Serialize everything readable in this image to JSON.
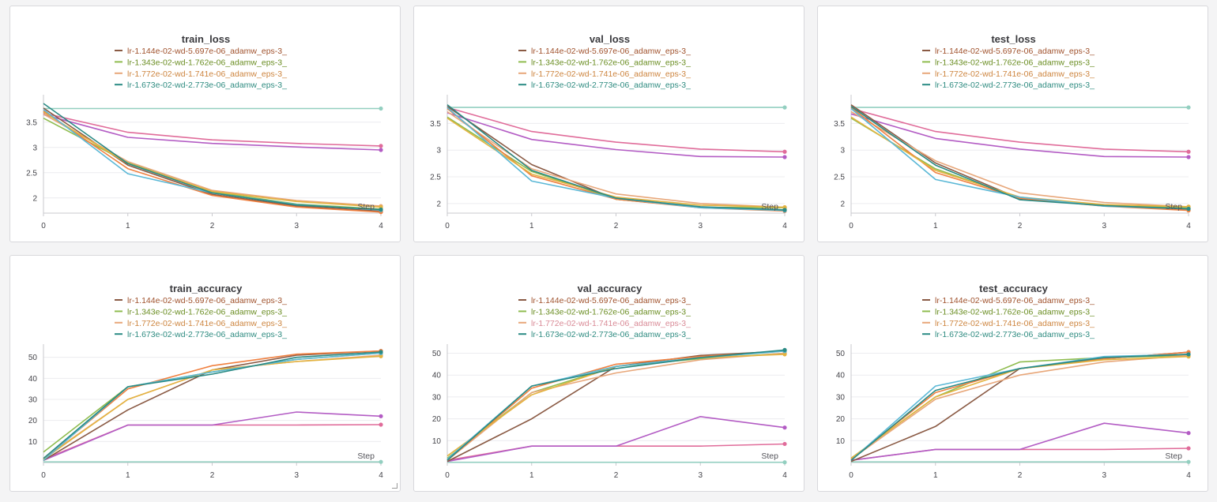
{
  "legend": [
    {
      "label": "lr-1.144e-02-wd-5.697e-06_adamw_eps-3_",
      "color": "#8a5a44"
    },
    {
      "label": "lr-1.343e-02-wd-1.762e-06_adamw_eps-3_",
      "color": "#8fbc4f"
    },
    {
      "label": "lr-1.772e-02-wd-1.741e-06_adamw_eps-3_",
      "color": "#e8a77a"
    },
    {
      "label": "lr-1.673e-02-wd-2.773e-06_adamw_eps-3_",
      "color": "#2a8a84"
    }
  ],
  "legend_text_colors": [
    "#a0522d",
    "#6b8e23",
    "#cd853f",
    "#2e8b80"
  ],
  "val_acc_legend_label_color_override": "#d98a96",
  "step_label": "Step",
  "chart_data": [
    {
      "type": "line",
      "title": "train_loss",
      "xlabel": "Step",
      "ylabel": "",
      "x": [
        0,
        1,
        2,
        3,
        4
      ],
      "xticks": [
        "0",
        "1",
        "2",
        "3",
        "4"
      ],
      "ylim": [
        1.7,
        3.95
      ],
      "yticks": [
        2,
        2.5,
        3,
        3.5
      ],
      "ytick_labels": [
        "2",
        "2.5",
        "3",
        "3.5"
      ],
      "series": [
        {
          "name": "teal-flat",
          "color": "#93cfc0",
          "values": [
            3.77,
            3.77,
            3.77,
            3.77,
            3.77
          ]
        },
        {
          "name": "pink",
          "color": "#e06c9a",
          "values": [
            3.68,
            3.3,
            3.15,
            3.08,
            3.03
          ]
        },
        {
          "name": "purple",
          "color": "#b35cc4",
          "values": [
            3.65,
            3.2,
            3.08,
            3.01,
            2.95
          ]
        },
        {
          "name": "lr-1.144e-02-wd-5.697e-06_adamw_eps-3_",
          "color": "#8a5a44",
          "values": [
            3.78,
            2.65,
            2.07,
            1.84,
            1.74
          ]
        },
        {
          "name": "lr-1.343e-02-wd-1.762e-06_adamw_eps-3_",
          "color": "#8fbc4f",
          "values": [
            3.58,
            2.7,
            2.12,
            1.88,
            1.78
          ]
        },
        {
          "name": "lr-1.772e-02-wd-1.741e-06_adamw_eps-3_",
          "color": "#e8a77a",
          "values": [
            3.66,
            2.72,
            2.15,
            1.95,
            1.84
          ]
        },
        {
          "name": "orange",
          "color": "#f08040",
          "values": [
            3.72,
            2.58,
            2.05,
            1.82,
            1.72
          ]
        },
        {
          "name": "gold",
          "color": "#e3b340",
          "values": [
            3.7,
            2.68,
            2.13,
            1.93,
            1.82
          ]
        },
        {
          "name": "skyblue",
          "color": "#5bb8d6",
          "values": [
            3.75,
            2.48,
            2.1,
            1.87,
            1.76
          ]
        },
        {
          "name": "lr-1.673e-02-wd-2.773e-06_adamw_eps-3_",
          "color": "#2a8a84",
          "values": [
            3.87,
            2.68,
            2.1,
            1.86,
            1.77
          ]
        }
      ]
    },
    {
      "type": "line",
      "title": "val_loss",
      "xlabel": "Step",
      "ylabel": "",
      "x": [
        0,
        1,
        2,
        3,
        4
      ],
      "xticks": [
        "0",
        "1",
        "2",
        "3",
        "4"
      ],
      "ylim": [
        1.82,
        3.95
      ],
      "yticks": [
        2,
        2.5,
        3,
        3.5
      ],
      "ytick_labels": [
        "2",
        "2.5",
        "3",
        "3.5"
      ],
      "series": [
        {
          "name": "teal-flat",
          "color": "#93cfc0",
          "values": [
            3.8,
            3.8,
            3.8,
            3.8,
            3.8
          ]
        },
        {
          "name": "pink",
          "color": "#e06c9a",
          "values": [
            3.8,
            3.35,
            3.15,
            3.02,
            2.97
          ]
        },
        {
          "name": "purple",
          "color": "#b35cc4",
          "values": [
            3.7,
            3.2,
            3.01,
            2.88,
            2.87
          ]
        },
        {
          "name": "lr-1.144e-02-wd-5.697e-06_adamw_eps-3_",
          "color": "#8a5a44",
          "values": [
            3.82,
            2.73,
            2.08,
            1.93,
            1.88
          ]
        },
        {
          "name": "lr-1.343e-02-wd-1.762e-06_adamw_eps-3_",
          "color": "#8fbc4f",
          "values": [
            3.62,
            2.6,
            2.08,
            1.93,
            1.92
          ]
        },
        {
          "name": "lr-1.772e-02-wd-1.741e-06_adamw_eps-3_",
          "color": "#e8a77a",
          "values": [
            3.72,
            2.65,
            2.18,
            2.0,
            1.93
          ]
        },
        {
          "name": "orange",
          "color": "#f08040",
          "values": [
            3.78,
            2.52,
            2.08,
            1.92,
            1.86
          ]
        },
        {
          "name": "gold",
          "color": "#e3b340",
          "values": [
            3.6,
            2.55,
            2.12,
            1.97,
            1.93
          ]
        },
        {
          "name": "skyblue",
          "color": "#5bb8d6",
          "values": [
            3.8,
            2.42,
            2.1,
            1.92,
            1.87
          ]
        },
        {
          "name": "lr-1.673e-02-wd-2.773e-06_adamw_eps-3_",
          "color": "#2a8a84",
          "values": [
            3.85,
            2.62,
            2.1,
            1.94,
            1.88
          ]
        }
      ]
    },
    {
      "type": "line",
      "title": "test_loss",
      "xlabel": "Step",
      "ylabel": "",
      "x": [
        0,
        1,
        2,
        3,
        4
      ],
      "xticks": [
        "0",
        "1",
        "2",
        "3",
        "4"
      ],
      "ylim": [
        1.82,
        3.95
      ],
      "yticks": [
        2,
        2.5,
        3,
        3.5
      ],
      "ytick_labels": [
        "2",
        "2.5",
        "3",
        "3.5"
      ],
      "series": [
        {
          "name": "teal-flat",
          "color": "#93cfc0",
          "values": [
            3.8,
            3.8,
            3.8,
            3.8,
            3.8
          ]
        },
        {
          "name": "pink",
          "color": "#e06c9a",
          "values": [
            3.78,
            3.35,
            3.15,
            3.02,
            2.97
          ]
        },
        {
          "name": "purple",
          "color": "#b35cc4",
          "values": [
            3.68,
            3.22,
            3.02,
            2.88,
            2.87
          ]
        },
        {
          "name": "lr-1.144e-02-wd-5.697e-06_adamw_eps-3_",
          "color": "#8a5a44",
          "values": [
            3.85,
            2.76,
            2.09,
            1.96,
            1.88
          ]
        },
        {
          "name": "lr-1.343e-02-wd-1.762e-06_adamw_eps-3_",
          "color": "#8fbc4f",
          "values": [
            3.6,
            2.65,
            2.1,
            1.96,
            1.92
          ]
        },
        {
          "name": "lr-1.772e-02-wd-1.741e-06_adamw_eps-3_",
          "color": "#e8a77a",
          "values": [
            3.72,
            2.8,
            2.2,
            2.02,
            1.94
          ]
        },
        {
          "name": "orange",
          "color": "#f08040",
          "values": [
            3.8,
            2.58,
            2.1,
            1.95,
            1.87
          ]
        },
        {
          "name": "gold",
          "color": "#e3b340",
          "values": [
            3.62,
            2.62,
            2.12,
            1.98,
            1.94
          ]
        },
        {
          "name": "skyblue",
          "color": "#5bb8d6",
          "values": [
            3.78,
            2.45,
            2.12,
            1.95,
            1.9
          ]
        },
        {
          "name": "lr-1.673e-02-wd-2.773e-06_adamw_eps-3_",
          "color": "#2a8a84",
          "values": [
            3.82,
            2.72,
            2.07,
            1.96,
            1.9
          ]
        }
      ]
    },
    {
      "type": "line",
      "title": "train_accuracy",
      "xlabel": "Step",
      "ylabel": "",
      "x": [
        0,
        1,
        2,
        3,
        4
      ],
      "xticks": [
        "0",
        "1",
        "2",
        "3",
        "4"
      ],
      "ylim": [
        0,
        54
      ],
      "yticks": [
        10,
        20,
        30,
        40,
        50
      ],
      "ytick_labels": [
        "10",
        "20",
        "30",
        "40",
        "50"
      ],
      "series": [
        {
          "name": "teal-flat",
          "color": "#93cfc0",
          "values": [
            0.3,
            0.3,
            0.3,
            0.3,
            0.3
          ]
        },
        {
          "name": "pink",
          "color": "#e06c9a",
          "values": [
            1.5,
            17.8,
            17.8,
            17.8,
            18
          ]
        },
        {
          "name": "purple",
          "color": "#b35cc4",
          "values": [
            1,
            17.8,
            17.8,
            24,
            22
          ]
        },
        {
          "name": "lr-1.144e-02-wd-5.697e-06_adamw_eps-3_",
          "color": "#8a5a44",
          "values": [
            1,
            25,
            44,
            51,
            53
          ]
        },
        {
          "name": "lr-1.343e-02-wd-1.762e-06_adamw_eps-3_",
          "color": "#8fbc4f",
          "values": [
            5,
            36,
            43,
            49,
            52
          ]
        },
        {
          "name": "lr-1.772e-02-wd-1.741e-06_adamw_eps-3_",
          "color": "#e8a77a",
          "values": [
            2,
            30,
            44,
            48,
            51
          ]
        },
        {
          "name": "orange",
          "color": "#f08040",
          "values": [
            1.5,
            35,
            46,
            51.5,
            53
          ]
        },
        {
          "name": "gold",
          "color": "#e3b340",
          "values": [
            1.5,
            30,
            44,
            48,
            50.5
          ]
        },
        {
          "name": "skyblue",
          "color": "#5bb8d6",
          "values": [
            1,
            36,
            43,
            49,
            52
          ]
        },
        {
          "name": "lr-1.673e-02-wd-2.773e-06_adamw_eps-3_",
          "color": "#2a8a84",
          "values": [
            2,
            36,
            42,
            50,
            52.5
          ]
        }
      ]
    },
    {
      "type": "line",
      "title": "val_accuracy",
      "xlabel": "Step",
      "ylabel": "",
      "x": [
        0,
        1,
        2,
        3,
        4
      ],
      "xticks": [
        "0",
        "1",
        "2",
        "3",
        "4"
      ],
      "ylim": [
        0,
        52
      ],
      "yticks": [
        10,
        20,
        30,
        40,
        50
      ],
      "ytick_labels": [
        "10",
        "20",
        "30",
        "40",
        "50"
      ],
      "series": [
        {
          "name": "teal-flat",
          "color": "#93cfc0",
          "values": [
            0.1,
            0.1,
            0.1,
            0.1,
            0.1
          ]
        },
        {
          "name": "pink",
          "color": "#e06c9a",
          "values": [
            1,
            7.5,
            7.5,
            7.5,
            8.5
          ]
        },
        {
          "name": "purple",
          "color": "#b35cc4",
          "values": [
            0.5,
            7.5,
            7.5,
            21,
            16
          ]
        },
        {
          "name": "lr-1.144e-02-wd-5.697e-06_adamw_eps-3_",
          "color": "#8a5a44",
          "values": [
            0.5,
            20,
            44,
            49,
            51
          ]
        },
        {
          "name": "lr-1.343e-02-wd-1.762e-06_adamw_eps-3_",
          "color": "#8fbc4f",
          "values": [
            2,
            32,
            44,
            47.5,
            50
          ]
        },
        {
          "name": "lr-1.772e-02-wd-1.741e-06_adamw_eps-3_",
          "color": "#e8a77a",
          "values": [
            1,
            32,
            41,
            47,
            50
          ]
        },
        {
          "name": "orange",
          "color": "#f08040",
          "values": [
            1,
            34,
            45,
            48.5,
            51
          ]
        },
        {
          "name": "gold",
          "color": "#e3b340",
          "values": [
            3,
            31,
            44,
            48,
            49.5
          ]
        },
        {
          "name": "skyblue",
          "color": "#5bb8d6",
          "values": [
            1.5,
            35,
            44,
            48,
            51
          ]
        },
        {
          "name": "lr-1.673e-02-wd-2.773e-06_adamw_eps-3_",
          "color": "#2a8a84",
          "values": [
            1,
            35,
            43,
            48,
            51.5
          ]
        }
      ]
    },
    {
      "type": "line",
      "title": "test_accuracy",
      "xlabel": "Step",
      "ylabel": "",
      "x": [
        0,
        1,
        2,
        3,
        4
      ],
      "xticks": [
        "0",
        "1",
        "2",
        "3",
        "4"
      ],
      "ylim": [
        0,
        52
      ],
      "yticks": [
        10,
        20,
        30,
        40,
        50
      ],
      "ytick_labels": [
        "10",
        "20",
        "30",
        "40",
        "50"
      ],
      "series": [
        {
          "name": "teal-flat",
          "color": "#93cfc0",
          "values": [
            0.3,
            0.3,
            0.3,
            0.3,
            0.3
          ]
        },
        {
          "name": "pink",
          "color": "#e06c9a",
          "values": [
            1,
            6,
            6,
            6,
            6.5
          ]
        },
        {
          "name": "purple",
          "color": "#b35cc4",
          "values": [
            1,
            6,
            6,
            18,
            13.5
          ]
        },
        {
          "name": "lr-1.144e-02-wd-5.697e-06_adamw_eps-3_",
          "color": "#8a5a44",
          "values": [
            0.5,
            16.5,
            43,
            47.5,
            50.5
          ]
        },
        {
          "name": "lr-1.343e-02-wd-1.762e-06_adamw_eps-3_",
          "color": "#8fbc4f",
          "values": [
            2,
            30,
            46,
            48,
            49
          ]
        },
        {
          "name": "lr-1.772e-02-wd-1.741e-06_adamw_eps-3_",
          "color": "#e8a77a",
          "values": [
            1.5,
            29,
            40,
            46,
            49
          ]
        },
        {
          "name": "orange",
          "color": "#f08040",
          "values": [
            1.5,
            32,
            43,
            47.5,
            50.5
          ]
        },
        {
          "name": "gold",
          "color": "#e3b340",
          "values": [
            2,
            30,
            43,
            47,
            48.5
          ]
        },
        {
          "name": "skyblue",
          "color": "#5bb8d6",
          "values": [
            1,
            35,
            43,
            48.5,
            49.5
          ]
        },
        {
          "name": "lr-1.673e-02-wd-2.773e-06_adamw_eps-3_",
          "color": "#2a8a84",
          "values": [
            1,
            33,
            43,
            48,
            49.5
          ]
        }
      ]
    }
  ]
}
